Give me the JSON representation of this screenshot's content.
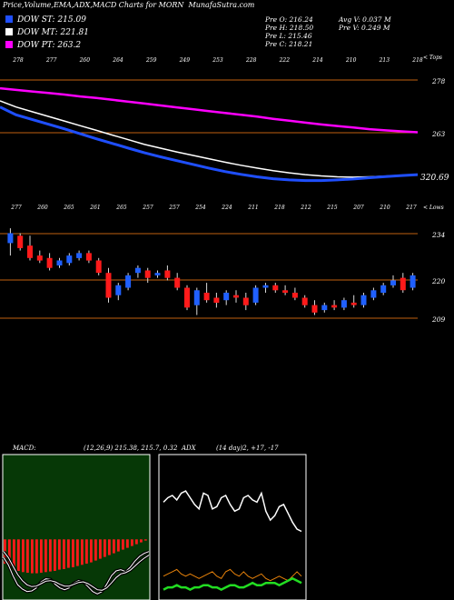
{
  "header": {
    "title": "Price,Volume,EMA,ADX,MACD Charts for MORN",
    "site": "MunafaSutra.com"
  },
  "legend": [
    {
      "label": "DOW ST: 215.09",
      "color": "#1f4fff"
    },
    {
      "label": "DOW MT: 221.81",
      "color": "#ffffff"
    },
    {
      "label": "DOW PT: 263.2",
      "color": "#ff00ff"
    }
  ],
  "ohlc": {
    "open": "Pre  O: 216.24",
    "high": "Pre  H: 218.50",
    "low": "Pre  L: 215.46",
    "close": "Pre  C: 218.21",
    "avg_volume": "Avg V: 0.037 M",
    "pre_volume": "Pre  V: 0.249 M"
  },
  "colors": {
    "up": "#2060ff",
    "down": "#ff1a1a",
    "level_line": "#c06010",
    "dow_st": "#1f4fff",
    "dow_mt": "#ffffff",
    "dow_pt": "#ff00ff",
    "adx_plus": "#ffffff",
    "adx_minus": "#e8820a",
    "adx": "#22dd22",
    "macd_panel_bg": "#063806",
    "macd_hist": "#ff1a1a"
  },
  "chart_data": [
    {
      "type": "line",
      "panel": "ema",
      "top_labels": [
        "278",
        "277",
        "260",
        "264",
        "259",
        "249",
        "253",
        "228",
        "222",
        "214",
        "210",
        "213",
        "218"
      ],
      "tops_label": "< Tops",
      "right_ticks": [
        278,
        263
      ],
      "last_value_label": "320.69",
      "ylim": [
        250,
        285
      ],
      "series": [
        {
          "name": "DOW PT: 263.2",
          "values": [
            280,
            279.5,
            279,
            278.5,
            278,
            277.4,
            276.9,
            276.3,
            275.7,
            275.1,
            274.5,
            273.9,
            273.3,
            272.7,
            272.1,
            271.5,
            270.9,
            270.2,
            269.6,
            269,
            268.4,
            267.9,
            267.4,
            266.9,
            266.5,
            266.2,
            265.9
          ]
        },
        {
          "name": "DOW MT: 221.81",
          "values": [
            276,
            274,
            272.5,
            271,
            269.5,
            268,
            266.5,
            265,
            263.5,
            262,
            260.8,
            259.6,
            258.5,
            257.4,
            256.3,
            255.3,
            254.4,
            253.6,
            252.9,
            252.3,
            251.9,
            251.6,
            251.5,
            251.6,
            251.8,
            252.1,
            252.4
          ]
        },
        {
          "name": "DOW ST: 215.09",
          "values": [
            274,
            271.5,
            270,
            268.5,
            267,
            265.4,
            263.8,
            262.3,
            260.8,
            259.3,
            258,
            256.8,
            255.6,
            254.4,
            253.3,
            252.4,
            251.6,
            251,
            250.6,
            250.4,
            250.4,
            250.6,
            250.9,
            251.3,
            251.7,
            252,
            252.3
          ]
        }
      ]
    },
    {
      "type": "candlestick",
      "panel": "price",
      "top_labels": [
        "277",
        "260",
        "265",
        "261",
        "265",
        "257",
        "257",
        "254",
        "224",
        "211",
        "218",
        "212",
        "215",
        "207",
        "210",
        "217"
      ],
      "lows_label": "< Lows",
      "right_ticks": [
        234,
        220,
        209
      ],
      "ylim": [
        190,
        245
      ],
      "candles": [
        {
          "o": 232,
          "h": 238,
          "l": 227,
          "c": 236
        },
        {
          "o": 235,
          "h": 236,
          "l": 229,
          "c": 230
        },
        {
          "o": 231,
          "h": 235,
          "l": 225,
          "c": 226
        },
        {
          "o": 227,
          "h": 229,
          "l": 224,
          "c": 225
        },
        {
          "o": 226,
          "h": 228,
          "l": 221,
          "c": 222
        },
        {
          "o": 223,
          "h": 226,
          "l": 222,
          "c": 225
        },
        {
          "o": 224,
          "h": 228,
          "l": 223,
          "c": 227
        },
        {
          "o": 226,
          "h": 229,
          "l": 225,
          "c": 228
        },
        {
          "o": 228,
          "h": 229,
          "l": 224,
          "c": 225
        },
        {
          "o": 225,
          "h": 226,
          "l": 219,
          "c": 220
        },
        {
          "o": 220,
          "h": 222,
          "l": 208,
          "c": 210
        },
        {
          "o": 211,
          "h": 216,
          "l": 209,
          "c": 215
        },
        {
          "o": 214,
          "h": 220,
          "l": 213,
          "c": 219
        },
        {
          "o": 220,
          "h": 223,
          "l": 218,
          "c": 222
        },
        {
          "o": 221,
          "h": 222,
          "l": 216,
          "c": 218
        },
        {
          "o": 219,
          "h": 221,
          "l": 218,
          "c": 220
        },
        {
          "o": 221,
          "h": 223,
          "l": 217,
          "c": 218
        },
        {
          "o": 218,
          "h": 220,
          "l": 213,
          "c": 214
        },
        {
          "o": 214,
          "h": 215,
          "l": 205,
          "c": 206
        },
        {
          "o": 207,
          "h": 214,
          "l": 203,
          "c": 213
        },
        {
          "o": 212,
          "h": 216,
          "l": 208,
          "c": 209
        },
        {
          "o": 210,
          "h": 212,
          "l": 206,
          "c": 208
        },
        {
          "o": 209,
          "h": 213,
          "l": 207,
          "c": 212
        },
        {
          "o": 211,
          "h": 213,
          "l": 208,
          "c": 210
        },
        {
          "o": 210,
          "h": 212,
          "l": 205,
          "c": 207
        },
        {
          "o": 208,
          "h": 215,
          "l": 207,
          "c": 214
        },
        {
          "o": 214,
          "h": 216,
          "l": 212,
          "c": 215
        },
        {
          "o": 215,
          "h": 216,
          "l": 212,
          "c": 213
        },
        {
          "o": 213,
          "h": 215,
          "l": 211,
          "c": 212
        },
        {
          "o": 212,
          "h": 214,
          "l": 209,
          "c": 210
        },
        {
          "o": 210,
          "h": 211,
          "l": 206,
          "c": 207
        },
        {
          "o": 207,
          "h": 209,
          "l": 203,
          "c": 204
        },
        {
          "o": 205,
          "h": 208,
          "l": 204,
          "c": 207
        },
        {
          "o": 207,
          "h": 209,
          "l": 205,
          "c": 206
        },
        {
          "o": 206,
          "h": 210,
          "l": 205,
          "c": 209
        },
        {
          "o": 208,
          "h": 211,
          "l": 206,
          "c": 207
        },
        {
          "o": 207,
          "h": 212,
          "l": 206,
          "c": 211
        },
        {
          "o": 210,
          "h": 214,
          "l": 209,
          "c": 213
        },
        {
          "o": 212,
          "h": 216,
          "l": 211,
          "c": 215
        },
        {
          "o": 215,
          "h": 219,
          "l": 214,
          "c": 217
        },
        {
          "o": 218,
          "h": 220,
          "l": 212,
          "c": 213
        },
        {
          "o": 214,
          "h": 220,
          "l": 213,
          "c": 219
        }
      ]
    },
    {
      "type": "bar",
      "panel": "macd",
      "title": "MACD:",
      "params": "(12,26,9) 215.38,  215.7,  0.32",
      "ylim": [
        -10,
        14
      ],
      "histogram": [
        -4,
        -4.5,
        -5,
        -5.2,
        -5.4,
        -5.5,
        -5.6,
        -5.6,
        -5.5,
        -5.4,
        -5.3,
        -5.2,
        -5,
        -4.9,
        -4.7,
        -4.6,
        -4.4,
        -4.2,
        -4,
        -3.8,
        -3.5,
        -3.2,
        -2.9,
        -2.6,
        -2.3,
        -2,
        -1.7,
        -1.4,
        -1.1,
        -0.8,
        -0.5,
        -0.2
      ],
      "series": [
        {
          "values": [
            -3,
            -4.2,
            -6,
            -7.5,
            -8.2,
            -8.6,
            -8.5,
            -8,
            -7,
            -6.5,
            -6.6,
            -7.4,
            -8,
            -8.3,
            -8,
            -7.2,
            -6.8,
            -7,
            -7.8,
            -8.6,
            -9,
            -8.6,
            -7.4,
            -6,
            -5.2,
            -5,
            -5.3,
            -4.6,
            -3.6,
            -2.8,
            -2.3,
            -2
          ]
        },
        {
          "values": [
            -2,
            -3,
            -4.4,
            -5.8,
            -6.8,
            -7.5,
            -7.8,
            -7.7,
            -7.3,
            -6.9,
            -6.8,
            -7,
            -7.4,
            -7.7,
            -7.7,
            -7.4,
            -7.1,
            -7,
            -7.3,
            -7.8,
            -8.3,
            -8.4,
            -8,
            -7.2,
            -6.3,
            -5.7,
            -5.5,
            -5.1,
            -4.4,
            -3.7,
            -3.1,
            -2.6
          ]
        }
      ]
    },
    {
      "type": "line",
      "panel": "adx",
      "title": "ADX",
      "params": "(14 day)2, +17, -17",
      "ylim": [
        0,
        60
      ],
      "series": [
        {
          "values": [
            42,
            44,
            45,
            43,
            46,
            47,
            44,
            41,
            39,
            46,
            45,
            39,
            40,
            44,
            45,
            41,
            38,
            39,
            44,
            45,
            43,
            42,
            46,
            38,
            34,
            36,
            40,
            41,
            37,
            33,
            30,
            29
          ]
        },
        {
          "values": [
            9,
            10,
            11,
            12,
            10,
            9,
            10,
            9,
            8,
            9,
            10,
            11,
            9,
            8,
            11,
            12,
            10,
            9,
            11,
            9,
            8,
            9,
            10,
            8,
            7,
            8,
            9,
            8,
            7,
            9,
            11,
            9
          ]
        },
        {
          "values": [
            3,
            4,
            4,
            5,
            4,
            4,
            3,
            4,
            4,
            5,
            5,
            4,
            4,
            3,
            4,
            5,
            5,
            4,
            4,
            5,
            6,
            5,
            5,
            6,
            6,
            6,
            5,
            6,
            7,
            8,
            7,
            6
          ]
        }
      ]
    }
  ]
}
